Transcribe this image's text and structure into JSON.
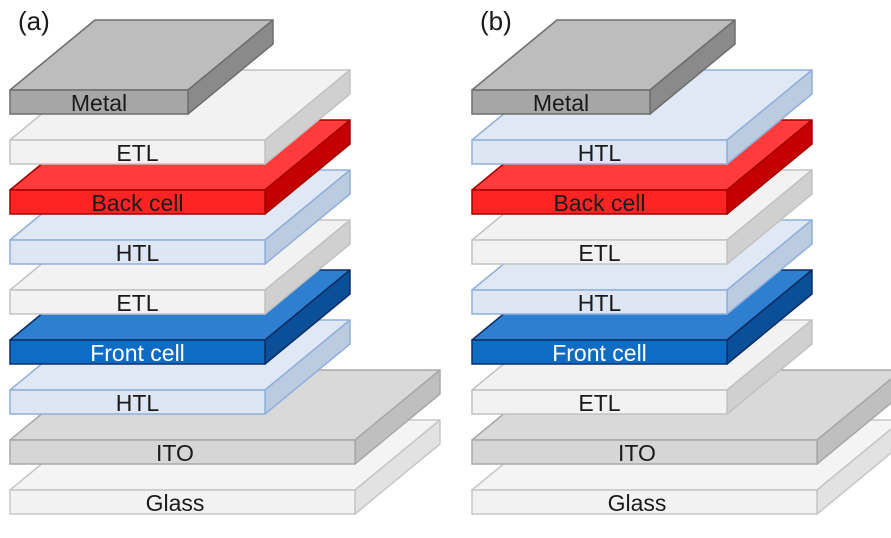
{
  "colors": {
    "glass": {
      "top": "#f4f4f4",
      "front": "#f2f2f2",
      "side": "#e2e2e2",
      "stroke": "#c6c6c6",
      "text": "#1a1a1a"
    },
    "ito": {
      "top": "#d9d9d9",
      "front": "#d6d6d6",
      "side": "#bfbfbf",
      "stroke": "#a8a8a8",
      "text": "#1a1a1a"
    },
    "etl": {
      "top": "#f2f2f2",
      "front": "#f2f2f2",
      "side": "#d0d0d0",
      "stroke": "#c2c2c2",
      "text": "#1a1a1a"
    },
    "htl": {
      "top": "#dfe8f4",
      "front": "#dde6f2",
      "side": "#bccbe0",
      "stroke": "#8fb0dc",
      "text": "#1a1a1a"
    },
    "front_cell": {
      "top": "#2f7fd0",
      "front": "#0f6cc4",
      "side": "#0b4f99",
      "stroke": "#0a2e66",
      "text": "#ffffff"
    },
    "back_cell": {
      "top": "#ff3b3b",
      "front": "#ff2424",
      "side": "#c40000",
      "stroke": "#a30000",
      "text": "#1a1a1a"
    },
    "metal": {
      "top": "#bdbdbd",
      "front": "#a6a6a6",
      "side": "#8a8a8a",
      "stroke": "#6e6e6e",
      "text": "#1a1a1a"
    }
  },
  "panels": [
    {
      "id": "a",
      "label": "(a)",
      "layers": [
        {
          "name": "Glass",
          "type": "glass"
        },
        {
          "name": "ITO",
          "type": "ito"
        },
        {
          "name": "HTL",
          "type": "htl"
        },
        {
          "name": "Front cell",
          "type": "front_cell"
        },
        {
          "name": "ETL",
          "type": "etl"
        },
        {
          "name": "HTL",
          "type": "htl"
        },
        {
          "name": "Back cell",
          "type": "back_cell"
        },
        {
          "name": "ETL",
          "type": "etl"
        },
        {
          "name": "Metal",
          "type": "metal"
        }
      ]
    },
    {
      "id": "b",
      "label": "(b)",
      "layers": [
        {
          "name": "Glass",
          "type": "glass"
        },
        {
          "name": "ITO",
          "type": "ito"
        },
        {
          "name": "ETL",
          "type": "etl"
        },
        {
          "name": "Front cell",
          "type": "front_cell"
        },
        {
          "name": "HTL",
          "type": "htl"
        },
        {
          "name": "ETL",
          "type": "etl"
        },
        {
          "name": "Back cell",
          "type": "back_cell"
        },
        {
          "name": "HTL",
          "type": "htl"
        },
        {
          "name": "Metal",
          "type": "metal"
        }
      ]
    }
  ]
}
